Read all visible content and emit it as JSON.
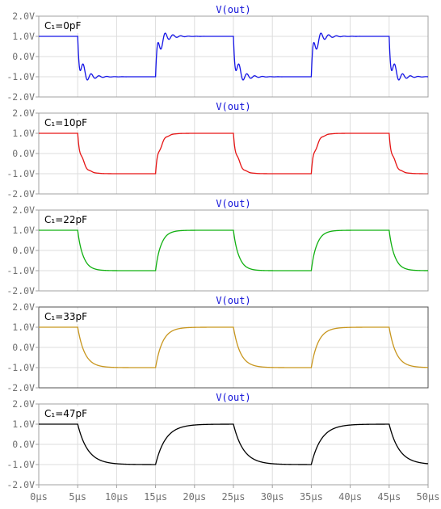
{
  "chart_data": [
    {
      "type": "line",
      "title": "V(out)",
      "label": "C₁=0pF",
      "color": "#1414e6",
      "ringing": {
        "overshoot": 0.75,
        "decay_us": 1.0,
        "freq_mhz": 1.0,
        "rise_us": 0.35
      },
      "x_range_us": [
        0,
        50
      ],
      "ylim": [
        -2.0,
        2.0
      ],
      "yticks": [
        "2.0V",
        "1.0V",
        "0.0V",
        "-1.0V",
        "-2.0V"
      ],
      "levels_v": [
        1.0,
        -1.0
      ],
      "transitions_us": [
        5,
        15,
        25,
        35,
        45
      ]
    },
    {
      "type": "line",
      "title": "V(out)",
      "label": "C₁=10pF",
      "color": "#e61414",
      "ringing": {
        "overshoot": 0.3,
        "decay_us": 0.55,
        "freq_mhz": 1.0,
        "rise_us": 0.6
      },
      "x_range_us": [
        0,
        50
      ],
      "ylim": [
        -2.0,
        2.0
      ],
      "yticks": [
        "2.0V",
        "1.0V",
        "0.0V",
        "-1.0V",
        "-2.0V"
      ],
      "levels_v": [
        1.0,
        -1.0
      ],
      "transitions_us": [
        5,
        15,
        25,
        35,
        45
      ]
    },
    {
      "type": "line",
      "title": "V(out)",
      "label": "C₁=22pF",
      "color": "#10b010",
      "ringing": {
        "overshoot": 0.04,
        "decay_us": 0.5,
        "freq_mhz": 0.8,
        "rise_us": 0.7
      },
      "x_range_us": [
        0,
        50
      ],
      "ylim": [
        -2.0,
        2.0
      ],
      "yticks": [
        "2.0V",
        "1.0V",
        "0.0V",
        "-1.0V",
        "-2.0V"
      ],
      "levels_v": [
        1.0,
        -1.0
      ],
      "transitions_us": [
        5,
        15,
        25,
        35,
        45
      ]
    },
    {
      "type": "line",
      "title": "V(out)",
      "label": "C₁=33pF",
      "color": "#c8961e",
      "ringing": {
        "overshoot": 0.0,
        "decay_us": 0.6,
        "freq_mhz": 0.5,
        "rise_us": 0.9
      },
      "x_range_us": [
        0,
        50
      ],
      "ylim": [
        -2.0,
        2.0
      ],
      "yticks": [
        "2.0V",
        "1.0V",
        "0.0V",
        "-1.0V",
        "-2.0V"
      ],
      "levels_v": [
        1.0,
        -1.0
      ],
      "transitions_us": [
        5,
        15,
        25,
        35,
        45
      ]
    },
    {
      "type": "line",
      "title": "V(out)",
      "label": "C₁=47pF",
      "color": "#000000",
      "ringing": {
        "overshoot": 0.0,
        "decay_us": 0.8,
        "freq_mhz": 0.4,
        "rise_us": 1.3
      },
      "x_range_us": [
        0,
        50
      ],
      "ylim": [
        -2.0,
        2.0
      ],
      "yticks": [
        "2.0V",
        "1.0V",
        "0.0V",
        "-1.0V",
        "-2.0V"
      ],
      "levels_v": [
        1.0,
        -1.0
      ],
      "transitions_us": [
        5,
        15,
        25,
        35,
        45
      ]
    }
  ],
  "x_axis": {
    "ticks": [
      "0µs",
      "5µs",
      "10µs",
      "15µs",
      "20µs",
      "25µs",
      "30µs",
      "35µs",
      "40µs",
      "45µs",
      "50µs"
    ]
  }
}
